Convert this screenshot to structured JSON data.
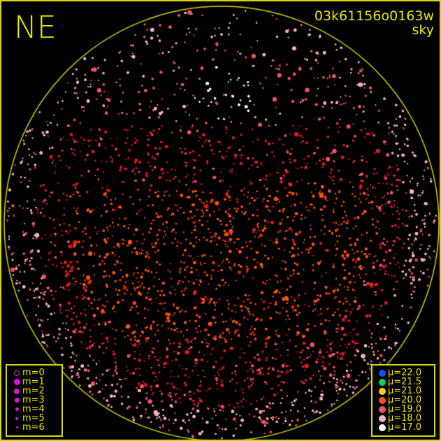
{
  "header": {
    "direction": "NE",
    "observation_id": "03k61156o0163w",
    "image_type": "sky"
  },
  "frame_color": "#d8d800",
  "magnitude_legend": [
    {
      "label": "m=0",
      "size": 9,
      "hollow": true
    },
    {
      "label": "m=1",
      "size": 9
    },
    {
      "label": "m=2",
      "size": 8
    },
    {
      "label": "m=3",
      "size": 7
    },
    {
      "label": "m=4",
      "size": 5
    },
    {
      "label": "m=5",
      "size": 4
    },
    {
      "label": "m=6",
      "size": 3
    }
  ],
  "magnitude_color": "#e010e0",
  "brightness_legend": [
    {
      "label": "μ=22.0",
      "color": "#1050ff"
    },
    {
      "label": "μ=21.5",
      "color": "#10d060"
    },
    {
      "label": "μ=21.0",
      "color": "#ffd000"
    },
    {
      "label": "μ=20.0",
      "color": "#ff5010"
    },
    {
      "label": "μ=19.0",
      "color": "#f05060"
    },
    {
      "label": "μ=18.0",
      "color": "#f8b0c0"
    },
    {
      "label": "μ=17.0",
      "color": "#ffffff"
    }
  ]
}
